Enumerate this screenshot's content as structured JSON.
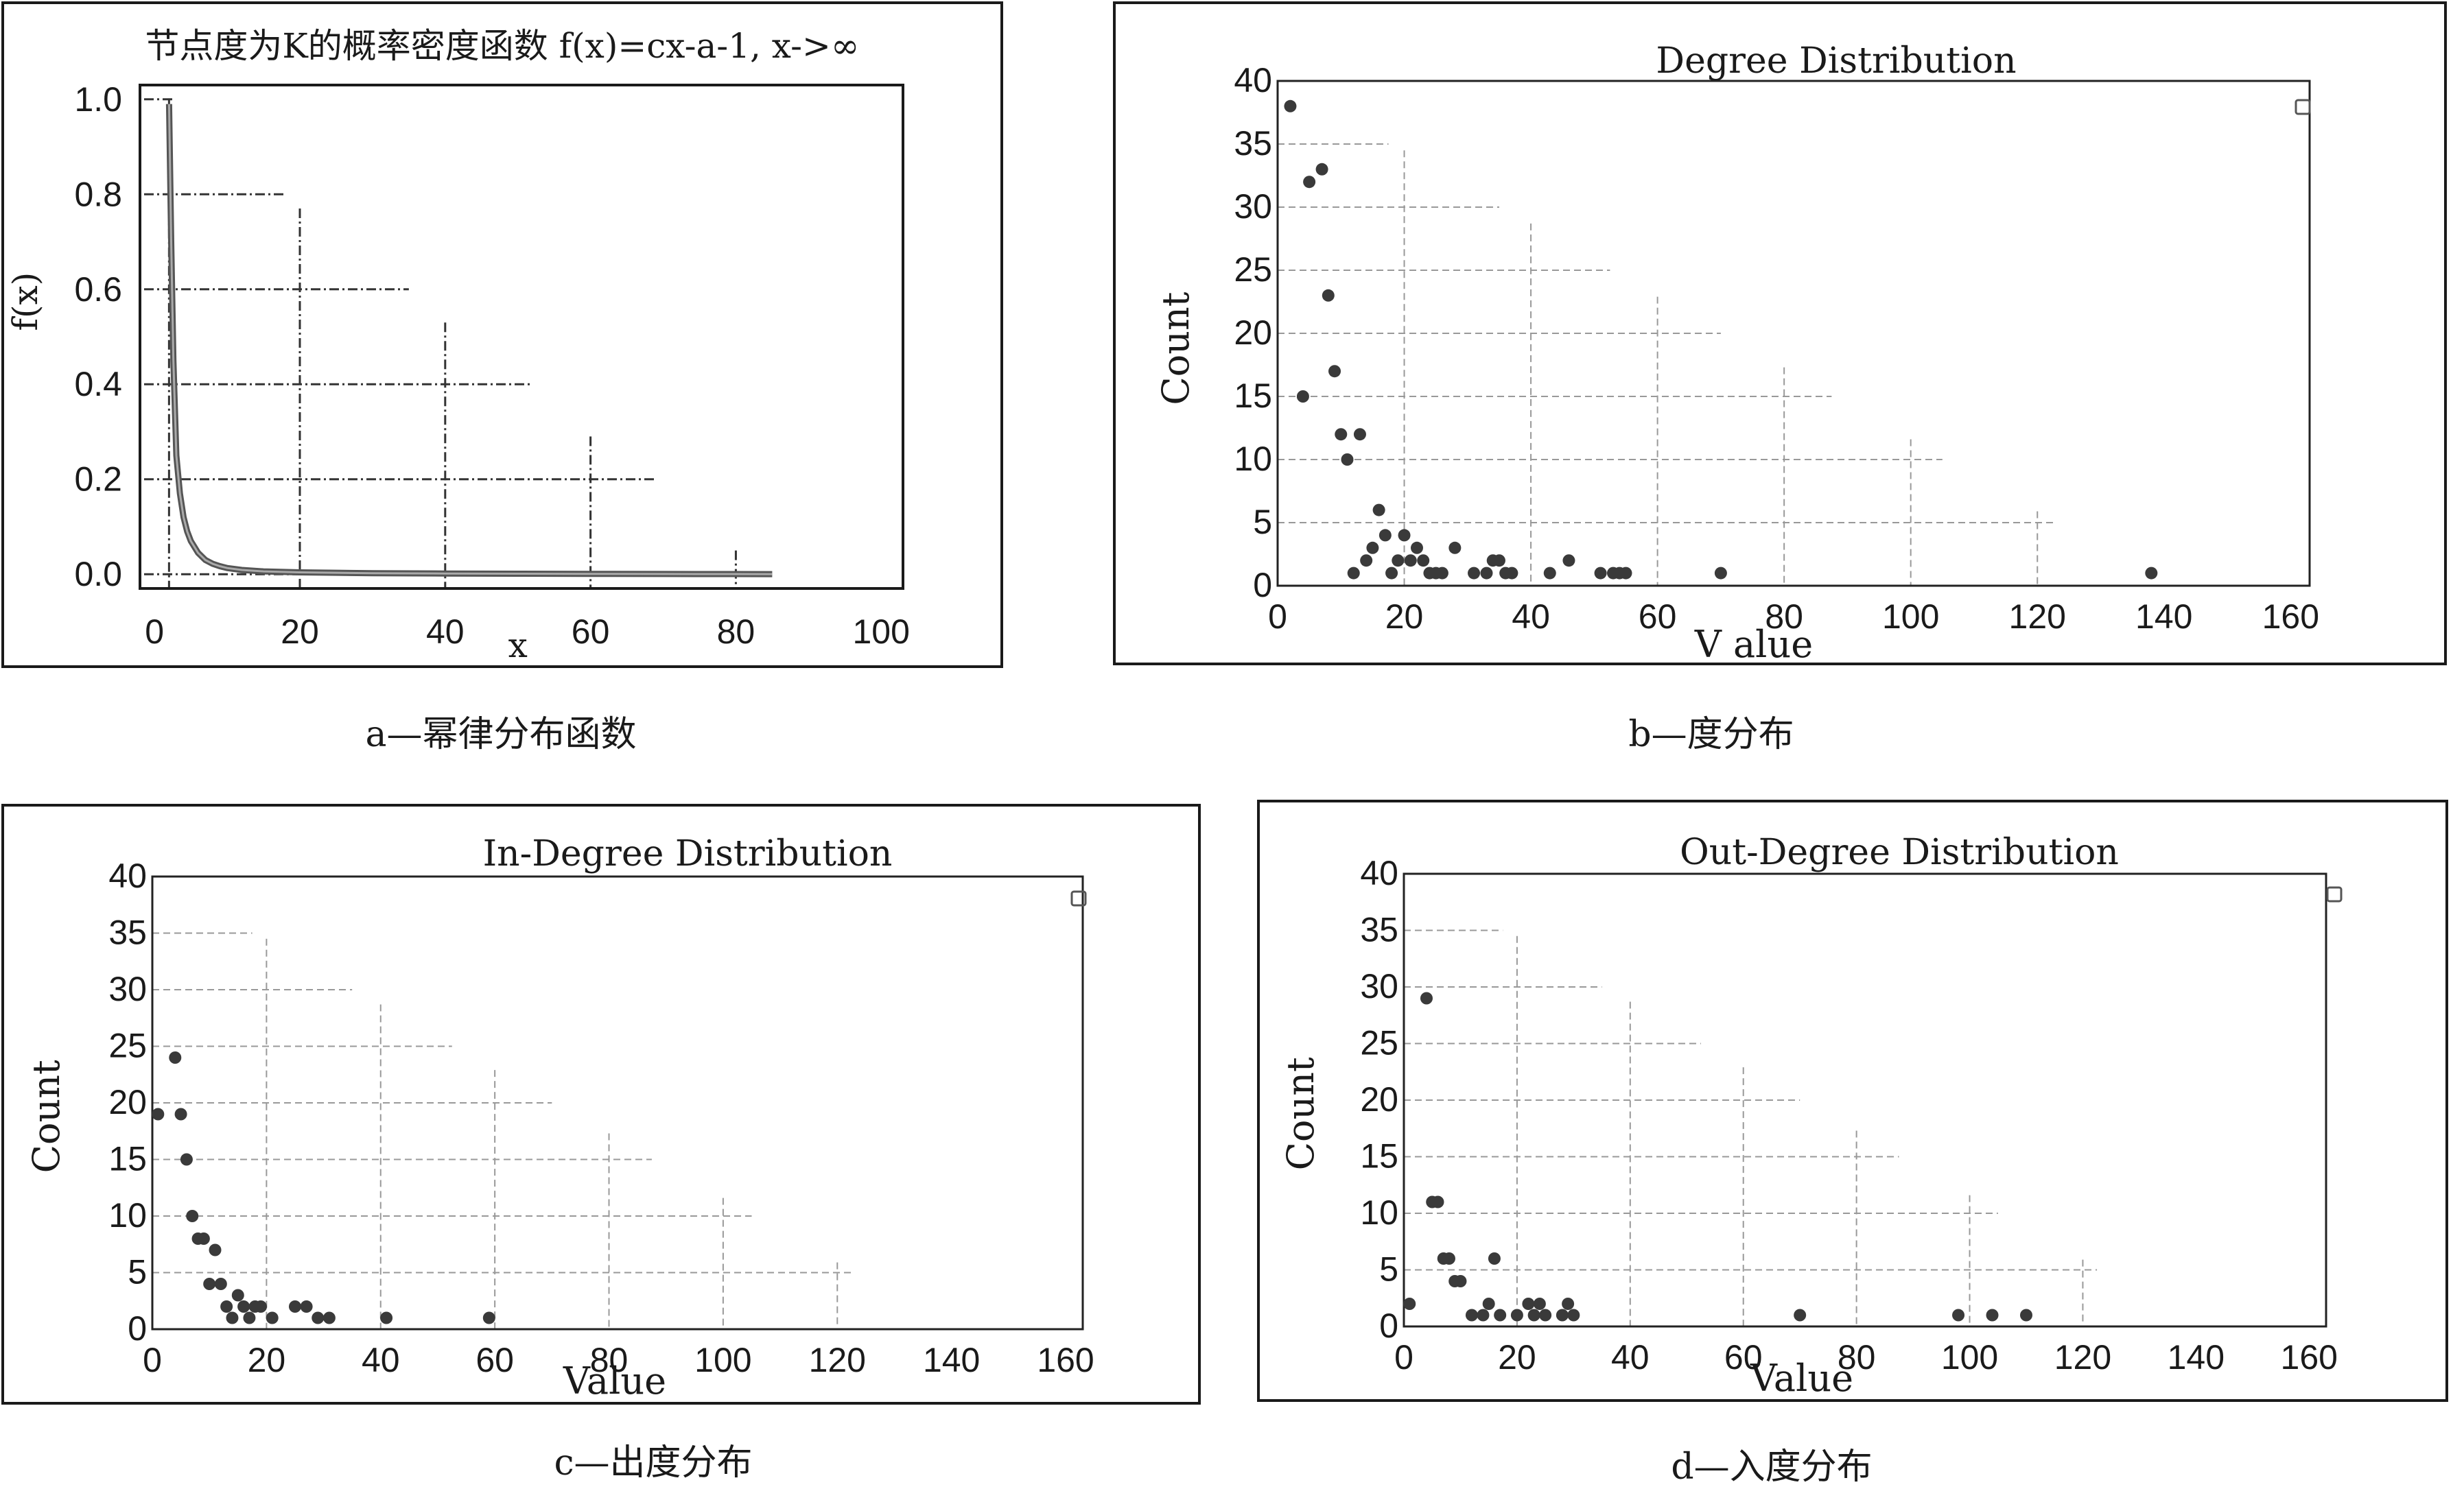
{
  "chart_data": [
    {
      "id": "a",
      "type": "line",
      "title": "节点度为K的概率密度函数 f(x)=cx-a-1, x->∞",
      "xlabel": "x",
      "ylabel": "f(x)",
      "xlim": [
        -2,
        103
      ],
      "ylim": [
        -0.03,
        1.03
      ],
      "xticks": [
        0,
        20,
        40,
        60,
        80,
        100
      ],
      "yticks": [
        0.0,
        0.2,
        0.4,
        0.6,
        0.8,
        1.0
      ],
      "ytick_labels": [
        "0.0",
        "0.2",
        "0.4",
        "0.6",
        "0.8",
        "1.0"
      ],
      "series": [
        {
          "x": [
            2,
            2.3,
            2.6,
            3,
            3.5,
            4,
            4.5,
            5,
            6,
            7,
            8,
            9,
            10,
            12,
            15,
            20,
            25,
            30,
            40,
            50,
            60,
            70,
            80,
            85
          ],
          "y": [
            0.99,
            0.7,
            0.45,
            0.25,
            0.17,
            0.12,
            0.09,
            0.07,
            0.045,
            0.03,
            0.022,
            0.017,
            0.013,
            0.009,
            0.006,
            0.004,
            0.003,
            0.002,
            0.0015,
            0.001,
            0.0008,
            0.0005,
            0.0003,
            0.0002
          ]
        }
      ],
      "caption": "a—幂律分布函数"
    },
    {
      "id": "b",
      "type": "scatter",
      "title": "Degree Distribution",
      "xlabel": "V alue",
      "ylabel": "Count",
      "xlim": [
        0,
        163
      ],
      "ylim": [
        0,
        40
      ],
      "xticks": [
        0,
        20,
        40,
        60,
        80,
        100,
        120,
        140,
        160
      ],
      "yticks": [
        0,
        5,
        10,
        15,
        20,
        25,
        30,
        35,
        40
      ],
      "points": [
        [
          2,
          38
        ],
        [
          4,
          15
        ],
        [
          5,
          32
        ],
        [
          7,
          33
        ],
        [
          8,
          23
        ],
        [
          9,
          17
        ],
        [
          10,
          12
        ],
        [
          11,
          10
        ],
        [
          12,
          1
        ],
        [
          13,
          12
        ],
        [
          14,
          2
        ],
        [
          15,
          3
        ],
        [
          16,
          6
        ],
        [
          17,
          4
        ],
        [
          18,
          1
        ],
        [
          19,
          2
        ],
        [
          20,
          4
        ],
        [
          21,
          2
        ],
        [
          22,
          3
        ],
        [
          23,
          2
        ],
        [
          24,
          1
        ],
        [
          25,
          1
        ],
        [
          26,
          1
        ],
        [
          28,
          3
        ],
        [
          31,
          1
        ],
        [
          33,
          1
        ],
        [
          34,
          2
        ],
        [
          35,
          2
        ],
        [
          36,
          1
        ],
        [
          37,
          1
        ],
        [
          43,
          1
        ],
        [
          46,
          2
        ],
        [
          51,
          1
        ],
        [
          53,
          1
        ],
        [
          54,
          1
        ],
        [
          55,
          1
        ],
        [
          70,
          1
        ],
        [
          138,
          1
        ]
      ],
      "caption": "b—度分布"
    },
    {
      "id": "c",
      "type": "scatter",
      "title": "In-Degree Distribution",
      "xlabel": "Value",
      "ylabel": "Count",
      "xlim": [
        0,
        163
      ],
      "ylim": [
        0,
        40
      ],
      "xticks": [
        0,
        20,
        40,
        60,
        80,
        100,
        120,
        140,
        160
      ],
      "yticks": [
        0,
        5,
        10,
        15,
        20,
        25,
        30,
        35,
        40
      ],
      "points": [
        [
          1,
          19
        ],
        [
          4,
          24
        ],
        [
          5,
          19
        ],
        [
          6,
          15
        ],
        [
          7,
          10
        ],
        [
          8,
          8
        ],
        [
          9,
          8
        ],
        [
          10,
          4
        ],
        [
          11,
          7
        ],
        [
          12,
          4
        ],
        [
          13,
          2
        ],
        [
          14,
          1
        ],
        [
          15,
          3
        ],
        [
          16,
          2
        ],
        [
          17,
          1
        ],
        [
          18,
          2
        ],
        [
          19,
          2
        ],
        [
          21,
          1
        ],
        [
          25,
          2
        ],
        [
          27,
          2
        ],
        [
          29,
          1
        ],
        [
          31,
          1
        ],
        [
          41,
          1
        ],
        [
          59,
          1
        ]
      ],
      "caption": "c—出度分布"
    },
    {
      "id": "d",
      "type": "scatter",
      "title": "Out-Degree Distribution",
      "xlabel": "Value",
      "ylabel": "Count",
      "xlim": [
        0,
        163
      ],
      "ylim": [
        0,
        40
      ],
      "xticks": [
        0,
        20,
        40,
        60,
        80,
        100,
        120,
        140,
        160
      ],
      "yticks": [
        0,
        5,
        10,
        15,
        20,
        25,
        30,
        35,
        40
      ],
      "points": [
        [
          1,
          2
        ],
        [
          4,
          29
        ],
        [
          5,
          11
        ],
        [
          6,
          11
        ],
        [
          7,
          6
        ],
        [
          8,
          6
        ],
        [
          9,
          4
        ],
        [
          10,
          4
        ],
        [
          12,
          1
        ],
        [
          14,
          1
        ],
        [
          15,
          2
        ],
        [
          16,
          6
        ],
        [
          17,
          1
        ],
        [
          20,
          1
        ],
        [
          22,
          2
        ],
        [
          23,
          1
        ],
        [
          24,
          2
        ],
        [
          25,
          1
        ],
        [
          28,
          1
        ],
        [
          29,
          2
        ],
        [
          30,
          1
        ],
        [
          70,
          1
        ],
        [
          98,
          1
        ],
        [
          104,
          1
        ],
        [
          110,
          1
        ]
      ],
      "caption": "d—入度分布"
    }
  ]
}
